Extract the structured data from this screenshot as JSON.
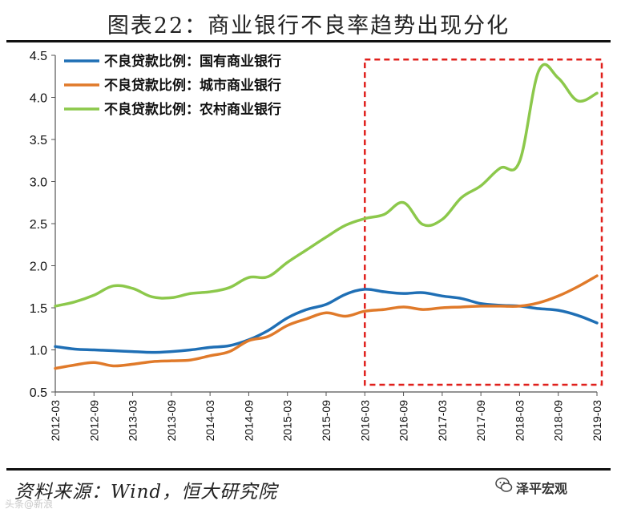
{
  "header": {
    "title": "图表22：商业银行不良率趋势出现分化"
  },
  "footer": {
    "source": "资料来源：Wind，恒大研究院",
    "brand": "泽平宏观",
    "watermark": "头条@新浪"
  },
  "colors": {
    "state_banks": "#1f6fb5",
    "city_banks": "#e07a2a",
    "rural_banks": "#8cc84b",
    "highlight_box": "#e0201c"
  },
  "chart_data": {
    "type": "line",
    "title": "商业银行不良率趋势出现分化",
    "xlabel": "",
    "ylabel": "",
    "ylim": [
      0.5,
      4.5
    ],
    "yticks": [
      "0.5",
      "1.0",
      "1.5",
      "2.0",
      "2.5",
      "3.0",
      "3.5",
      "4.0",
      "4.5"
    ],
    "x": [
      "2012-03",
      "2012-06",
      "2012-09",
      "2012-12",
      "2013-03",
      "2013-06",
      "2013-09",
      "2013-12",
      "2014-03",
      "2014-06",
      "2014-09",
      "2014-12",
      "2015-03",
      "2015-06",
      "2015-09",
      "2015-12",
      "2016-03",
      "2016-06",
      "2016-09",
      "2016-12",
      "2017-03",
      "2017-06",
      "2017-09",
      "2017-12",
      "2018-03",
      "2018-06",
      "2018-09",
      "2018-12",
      "2019-03"
    ],
    "xticks": [
      "2012-03",
      "2012-09",
      "2013-03",
      "2013-09",
      "2014-03",
      "2014-09",
      "2015-03",
      "2015-09",
      "2016-03",
      "2016-09",
      "2017-03",
      "2017-09",
      "2018-03",
      "2018-09",
      "2019-03"
    ],
    "series": [
      {
        "name": "不良贷款比例：国有商业银行",
        "color": "#1f6fb5",
        "values": [
          1.04,
          1.01,
          1.0,
          0.99,
          0.98,
          0.97,
          0.98,
          1.0,
          1.03,
          1.05,
          1.12,
          1.23,
          1.38,
          1.48,
          1.54,
          1.66,
          1.72,
          1.69,
          1.67,
          1.68,
          1.64,
          1.61,
          1.55,
          1.53,
          1.52,
          1.49,
          1.47,
          1.41,
          1.32
        ]
      },
      {
        "name": "不良贷款比例：城市商业银行",
        "color": "#e07a2a",
        "values": [
          0.78,
          0.82,
          0.85,
          0.81,
          0.83,
          0.86,
          0.87,
          0.88,
          0.93,
          0.98,
          1.11,
          1.16,
          1.29,
          1.37,
          1.44,
          1.4,
          1.46,
          1.48,
          1.51,
          1.48,
          1.5,
          1.51,
          1.52,
          1.52,
          1.52,
          1.56,
          1.64,
          1.75,
          1.88
        ]
      },
      {
        "name": "不良贷款比例：农村商业银行",
        "color": "#8cc84b",
        "values": [
          1.52,
          1.57,
          1.65,
          1.76,
          1.73,
          1.63,
          1.62,
          1.67,
          1.69,
          1.74,
          1.86,
          1.87,
          2.04,
          2.19,
          2.34,
          2.48,
          2.56,
          2.61,
          2.75,
          2.49,
          2.55,
          2.81,
          2.95,
          3.16,
          3.24,
          4.32,
          4.23,
          3.96,
          4.05
        ]
      }
    ],
    "annotation": "dashed red box highlighting 2016-03 to 2019-03",
    "highlight_range": [
      "2016-03",
      "2019-03"
    ],
    "highlight_ylim": [
      0.7,
      4.05
    ]
  }
}
